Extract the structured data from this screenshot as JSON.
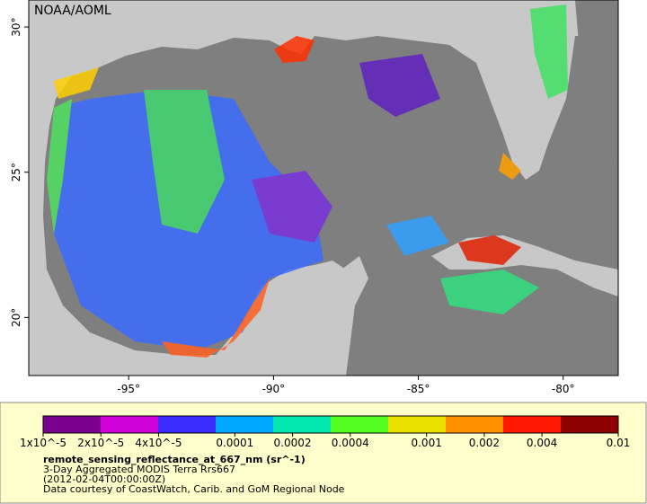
{
  "map": {
    "credit": "NOAA/AOML",
    "lon_range": [
      -98.45,
      -78.1
    ],
    "lat_range": [
      18,
      30.93
    ],
    "lon_ticks": [
      {
        "value": -95,
        "label": "-95°"
      },
      {
        "value": -90,
        "label": "-90°"
      },
      {
        "value": -85,
        "label": "-85°"
      },
      {
        "value": -80,
        "label": "-80°"
      }
    ],
    "lat_ticks": [
      {
        "value": 30,
        "label": "30°"
      },
      {
        "value": 25,
        "label": "25°"
      },
      {
        "value": 20,
        "label": "20°"
      }
    ]
  },
  "colorbar": {
    "log_scale": true,
    "range": [
      1e-05,
      0.01
    ],
    "colors": [
      "#7a0090",
      "#d000d8",
      "#3a2cff",
      "#00a8ff",
      "#00e8b0",
      "#50ff20",
      "#e8e000",
      "#ff9000",
      "#ff1800",
      "#8c0000"
    ],
    "ticks": [
      {
        "value": 1e-05,
        "label": "1x10^-5"
      },
      {
        "value": 2e-05,
        "label": "2x10^-5"
      },
      {
        "value": 4e-05,
        "label": "4x10^-5"
      },
      0.0001,
      0.0002,
      0.0004,
      0.001,
      0.002,
      0.004,
      0.01
    ]
  },
  "caption": {
    "variable": "remote_sensing_reflectance_at_667_nm (sr^-1)",
    "product": "3-Day Aggregated MODIS Terra Rrs667",
    "time": "(2012-02-04T00:00:00Z)",
    "source": "Data courtesy of CoastWatch, Carib. and GoM Regional Node"
  }
}
